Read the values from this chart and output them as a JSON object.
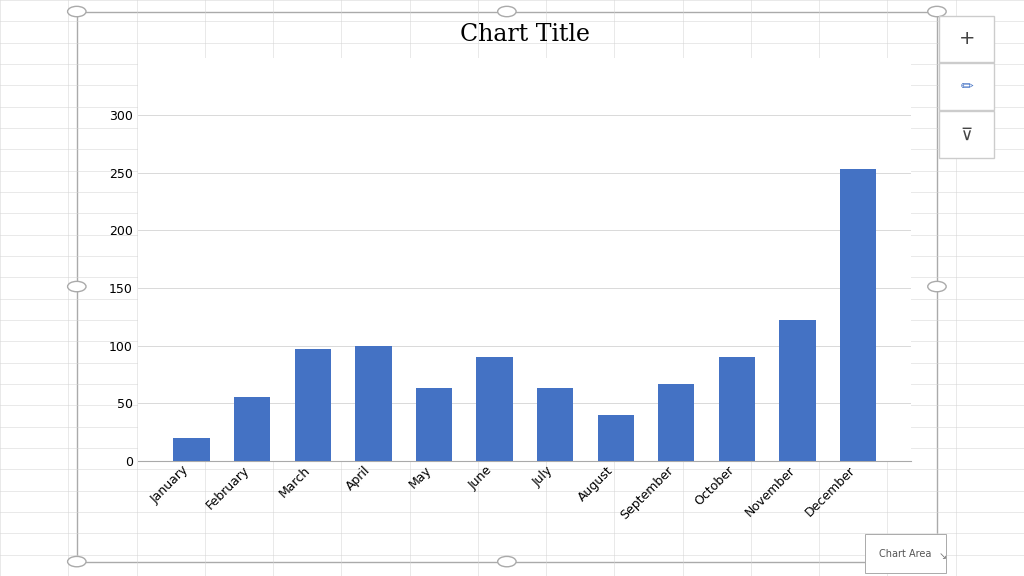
{
  "title": "Chart Title",
  "categories": [
    "January",
    "February",
    "March",
    "April",
    "May",
    "June",
    "July",
    "August",
    "September",
    "October",
    "November",
    "December"
  ],
  "values": [
    20,
    55,
    97,
    100,
    63,
    90,
    63,
    40,
    67,
    90,
    122,
    253
  ],
  "bar_color": "#4472C4",
  "bg_color": "#FFFFFF",
  "plot_bg_color": "#FFFFFF",
  "grid_color": "#D3D3D3",
  "spreadsheet_line_color": "#D3D3D3",
  "border_color": "#AAAAAA",
  "title_fontsize": 17,
  "tick_fontsize": 9,
  "ylim": [
    0,
    350
  ],
  "yticks": [
    0,
    50,
    100,
    150,
    200,
    250,
    300
  ],
  "chart_area_label": "Chart Area",
  "handle_color": "#AAAAAA",
  "icon_border_color": "#CCCCCC"
}
